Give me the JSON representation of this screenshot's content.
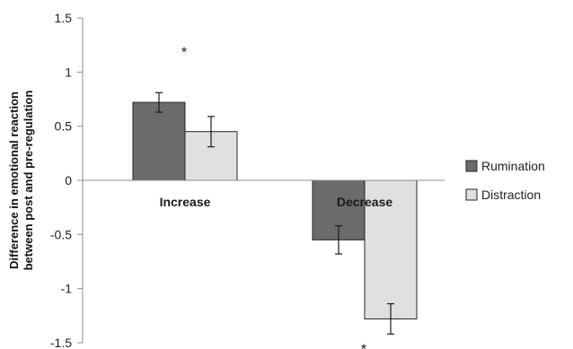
{
  "chart_data": {
    "type": "bar",
    "categories": [
      "Increase",
      "Decrease"
    ],
    "series": [
      {
        "name": "Rumination",
        "values": [
          0.72,
          -0.55
        ],
        "errors": [
          0.09,
          0.13
        ],
        "color": "#6b6b6b"
      },
      {
        "name": "Distraction",
        "values": [
          0.45,
          -1.28
        ],
        "errors": [
          0.14,
          0.14
        ],
        "color": "#e0e0e0"
      }
    ],
    "ylabel": [
      "Difference in emotional reaction",
      "between post and pre-regulation"
    ],
    "ylim": [
      -1.5,
      1.5
    ],
    "yticks": [
      "1.5",
      "1",
      "0.5",
      "0",
      "-0.5",
      "-1",
      "-1.5"
    ],
    "annotations": [
      {
        "text": "*",
        "category": "Increase",
        "at": "above"
      },
      {
        "text": "*",
        "category": "Decrease",
        "at": "below"
      }
    ],
    "legend": "right",
    "grid": false
  }
}
